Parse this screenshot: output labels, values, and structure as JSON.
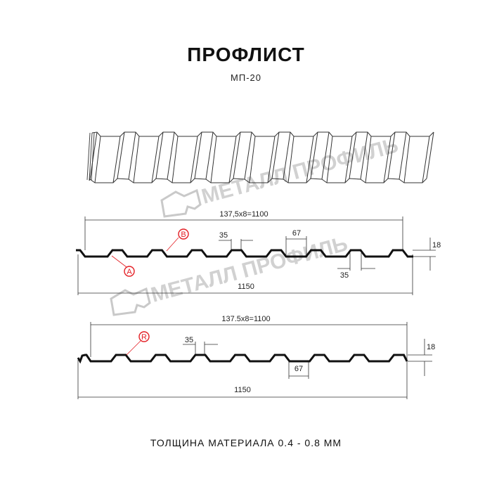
{
  "header": {
    "title": "ПРОФЛИСТ",
    "model": "МП-20"
  },
  "watermark": {
    "text": "МЕТАЛЛ ПРОФИЛЬ",
    "color": "#c9c9c9"
  },
  "profile_a": {
    "pitch_dim": "137,5x8=1100",
    "width_dim": "1150",
    "top_width": "35",
    "bottom_rib": "67",
    "rib_gap": "35",
    "height": "18",
    "marker_a": "A",
    "marker_b": "B"
  },
  "profile_b": {
    "pitch_dim": "137.5x8=1100",
    "width_dim": "1150",
    "top_width": "35",
    "bottom_rib": "67",
    "height": "18",
    "marker_r": "R"
  },
  "footer": {
    "thickness": "ТОЛЩИНА МАТЕРИАЛА 0.4 - 0.8 ММ"
  },
  "colors": {
    "marker": "#e31e24",
    "line": "#111111"
  }
}
